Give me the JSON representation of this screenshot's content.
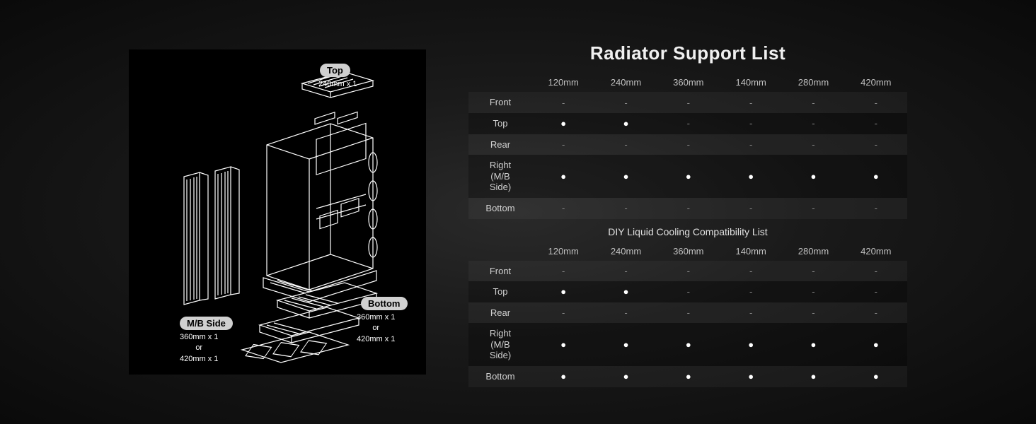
{
  "diagram": {
    "labels": {
      "top": {
        "pill": "Top",
        "sub": "240mm x 1"
      },
      "mb_side": {
        "pill": "M/B Side",
        "sub": "360mm x 1\nor\n420mm x 1"
      },
      "bottom": {
        "pill": "Bottom",
        "sub": "360mm x 1\nor\n420mm x 1"
      }
    },
    "colors": {
      "stroke": "#ffffff",
      "bg": "#000000"
    }
  },
  "tables": {
    "main_title": "Radiator Support List",
    "sub_title": "DIY Liquid Cooling Compatibility List",
    "columns": [
      "120mm",
      "240mm",
      "360mm",
      "140mm",
      "280mm",
      "420mm"
    ],
    "radiator_rows": [
      {
        "label": "Front",
        "cells": [
          "-",
          "-",
          "-",
          "-",
          "-",
          "-"
        ]
      },
      {
        "label": "Top",
        "cells": [
          "●",
          "●",
          "-",
          "-",
          "-",
          "-"
        ]
      },
      {
        "label": "Rear",
        "cells": [
          "-",
          "-",
          "-",
          "-",
          "-",
          "-"
        ]
      },
      {
        "label": "Right (M/B Side)",
        "cells": [
          "●",
          "●",
          "●",
          "●",
          "●",
          "●"
        ]
      },
      {
        "label": "Bottom",
        "cells": [
          "-",
          "-",
          "-",
          "-",
          "-",
          "-"
        ]
      }
    ],
    "diy_rows": [
      {
        "label": "Front",
        "cells": [
          "-",
          "-",
          "-",
          "-",
          "-",
          "-"
        ]
      },
      {
        "label": "Top",
        "cells": [
          "●",
          "●",
          "-",
          "-",
          "-",
          "-"
        ]
      },
      {
        "label": "Rear",
        "cells": [
          "-",
          "-",
          "-",
          "-",
          "-",
          "-"
        ]
      },
      {
        "label": "Right (M/B Side)",
        "cells": [
          "●",
          "●",
          "●",
          "●",
          "●",
          "●"
        ]
      },
      {
        "label": "Bottom",
        "cells": [
          "●",
          "●",
          "●",
          "●",
          "●",
          "●"
        ]
      }
    ]
  },
  "style": {
    "bg_gradient": "radial-gradient(#2a2a2a,#0a0a0a)",
    "text_color": "#e0e0e0",
    "title_fontsize": 26,
    "body_fontsize": 13
  }
}
